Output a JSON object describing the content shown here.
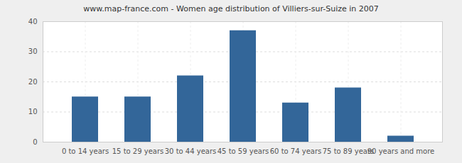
{
  "chart_data": {
    "type": "bar",
    "title": "www.map-france.com - Women age distribution of Villiers-sur-Suize in 2007",
    "categories": [
      "0 to 14 years",
      "15 to 29 years",
      "30 to 44 years",
      "45 to 59 years",
      "60 to 74 years",
      "75 to 89 years",
      "90 years and more"
    ],
    "values": [
      15,
      15,
      22,
      37,
      13,
      18,
      2
    ],
    "color": "#336699",
    "ylim": [
      0,
      40
    ],
    "yticks": [
      0,
      10,
      20,
      30,
      40
    ],
    "grid": true
  }
}
